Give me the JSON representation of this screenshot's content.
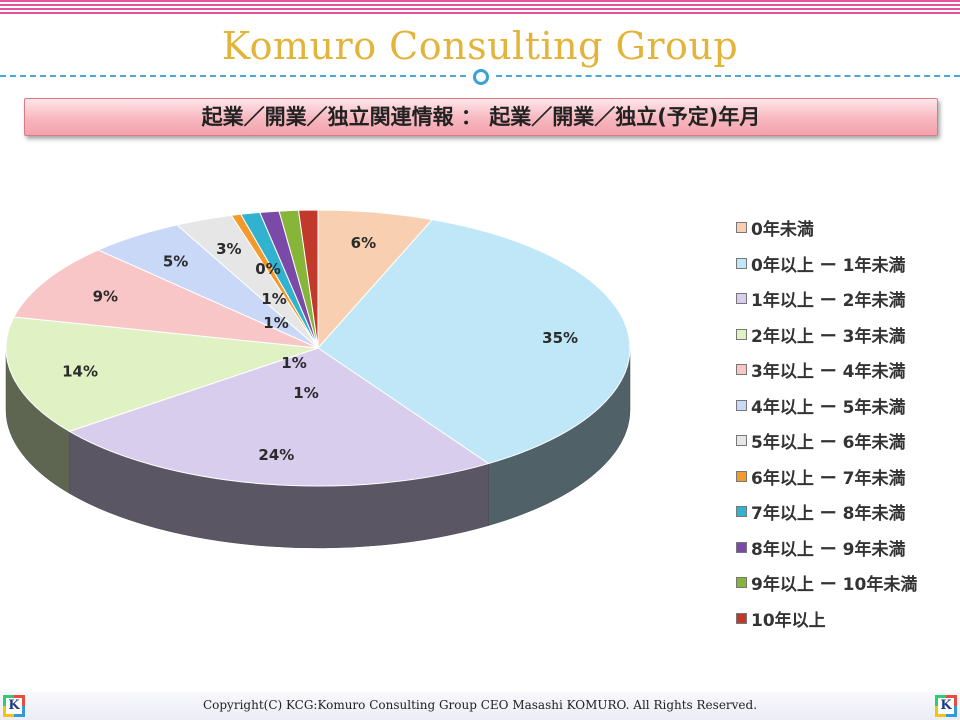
{
  "header": {
    "brand": "Komuro Consulting Group",
    "slide_title": "起業／開業／独立関連情報 ： 起業／開業／独立(予定)年月"
  },
  "footer": {
    "copyright": "Copyright(C)  KCG:Komuro Consulting Group  CEO Masashi KOMURO. All Rights Reserved.",
    "logo_letter": "K"
  },
  "chart_data": {
    "type": "pie",
    "title": "",
    "legend_position": "right",
    "slices": [
      {
        "label": "0年未満",
        "value": 6,
        "display": "6%",
        "color": "#f8cfb0"
      },
      {
        "label": "0年以上 ー 1年未満",
        "value": 35,
        "display": "35%",
        "color": "#bfe7f7"
      },
      {
        "label": "1年以上 ー 2年未満",
        "value": 24,
        "display": "24%",
        "color": "#d9cdee"
      },
      {
        "label": "2年以上 ー 3年未満",
        "value": 14,
        "display": "14%",
        "color": "#e0f2c4"
      },
      {
        "label": "3年以上 ー 4年未満",
        "value": 9,
        "display": "9%",
        "color": "#f8c6c6"
      },
      {
        "label": "4年以上 ー 5年未満",
        "value": 5,
        "display": "5%",
        "color": "#c9d8f7"
      },
      {
        "label": "5年以上 ー 6年未満",
        "value": 3,
        "display": "3%",
        "color": "#e6e6e6"
      },
      {
        "label": "6年以上 ー 7年未満",
        "value": 0.5,
        "display": "0%",
        "color": "#f39a2a"
      },
      {
        "label": "7年以上 ー 8年未満",
        "value": 1,
        "display": "1%",
        "color": "#31b3cf"
      },
      {
        "label": "8年以上 ー 9年未満",
        "value": 1,
        "display": "1%",
        "color": "#7b4aa8"
      },
      {
        "label": "9年以上 ー 10年未満",
        "value": 1,
        "display": "1%",
        "color": "#86b53a"
      },
      {
        "label": "10年以上",
        "value": 1,
        "display": "1%",
        "color": "#c0392b"
      }
    ]
  }
}
